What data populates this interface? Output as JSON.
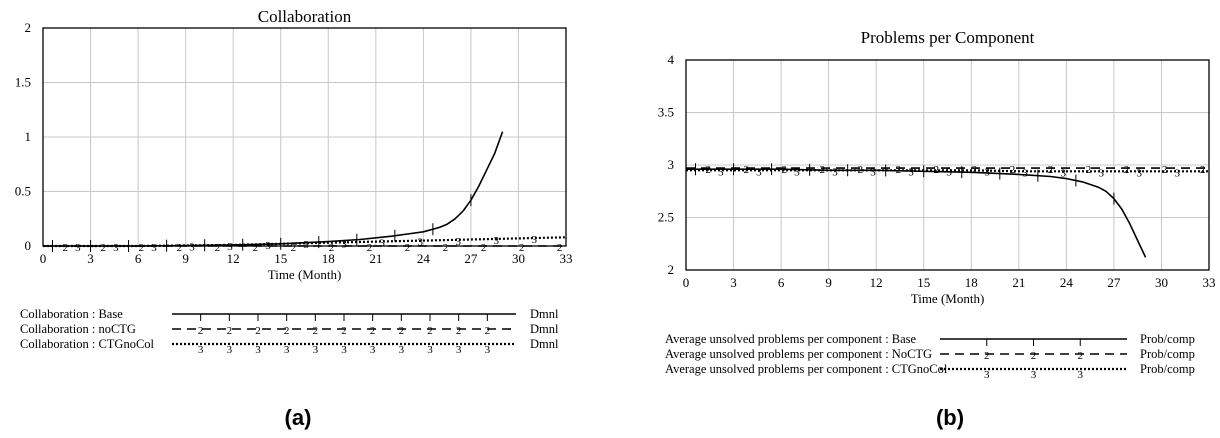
{
  "chart_data": [
    {
      "type": "line",
      "title": "Collaboration",
      "xlabel": "Time (Month)",
      "ylabel": "",
      "xlim": [
        0,
        33
      ],
      "ylim": [
        0,
        2
      ],
      "xticks": [
        "0",
        "3",
        "6",
        "9",
        "12",
        "15",
        "18",
        "21",
        "24",
        "27",
        "30",
        "33"
      ],
      "yticks": [
        "2",
        "1.5",
        "1",
        "0.5",
        "0"
      ],
      "grid": true,
      "series": [
        {
          "name": "Collaboration : Base",
          "unit": "Dmnl",
          "marker": "1",
          "style": "solid",
          "x": [
            0,
            3,
            6,
            9,
            12,
            15,
            18,
            20,
            22,
            23,
            24,
            25,
            25.5,
            26,
            26.5,
            27,
            27.5,
            28,
            28.5,
            29
          ],
          "y": [
            0,
            0,
            0,
            0.005,
            0.01,
            0.02,
            0.04,
            0.06,
            0.09,
            0.11,
            0.13,
            0.17,
            0.2,
            0.25,
            0.32,
            0.42,
            0.55,
            0.7,
            0.85,
            1.05
          ]
        },
        {
          "name": "Collaboration : noCTG",
          "unit": "Dmnl",
          "marker": "2",
          "style": "dashed",
          "x": [
            0,
            3,
            6,
            9,
            12,
            15,
            18,
            21,
            24,
            27,
            30,
            33
          ],
          "y": [
            0,
            0,
            0,
            0,
            0,
            0,
            0,
            0,
            0,
            0,
            0,
            0
          ]
        },
        {
          "name": "Collaboration : CTGnoCol",
          "unit": "Dmnl",
          "marker": "3",
          "style": "dotted",
          "x": [
            0,
            3,
            6,
            9,
            12,
            15,
            18,
            21,
            24,
            27,
            30,
            33
          ],
          "y": [
            0,
            0,
            0,
            0.005,
            0.01,
            0.02,
            0.03,
            0.04,
            0.05,
            0.06,
            0.07,
            0.08
          ]
        }
      ],
      "caption": "(a)"
    },
    {
      "type": "line",
      "title": "Problems per Component",
      "xlabel": "Time (Month)",
      "ylabel": "",
      "xlim": [
        0,
        33
      ],
      "ylim": [
        2,
        4
      ],
      "xticks": [
        "0",
        "3",
        "6",
        "9",
        "12",
        "15",
        "18",
        "21",
        "24",
        "27",
        "30",
        "33"
      ],
      "yticks": [
        "4",
        "3.5",
        "3",
        "2.5",
        "2"
      ],
      "grid": true,
      "series": [
        {
          "name": "Average unsolved problems per component : Base",
          "unit": "Prob/comp",
          "marker": "1",
          "style": "solid",
          "x": [
            0,
            3,
            6,
            9,
            12,
            15,
            18,
            21,
            23,
            24,
            25,
            26,
            26.5,
            27,
            27.5,
            28,
            28.5,
            29
          ],
          "y": [
            2.96,
            2.96,
            2.96,
            2.95,
            2.95,
            2.94,
            2.93,
            2.91,
            2.89,
            2.87,
            2.84,
            2.79,
            2.75,
            2.68,
            2.58,
            2.44,
            2.28,
            2.12
          ]
        },
        {
          "name": "Average unsolved problems per component : NoCTG",
          "unit": "Prob/comp",
          "marker": "2",
          "style": "dashed",
          "x": [
            0,
            3,
            6,
            9,
            12,
            15,
            18,
            21,
            24,
            27,
            30,
            33
          ],
          "y": [
            2.97,
            2.97,
            2.97,
            2.97,
            2.97,
            2.97,
            2.97,
            2.97,
            2.97,
            2.97,
            2.97,
            2.97
          ]
        },
        {
          "name": "Average unsolved problems per component : CTGnoCol",
          "unit": "Prob/comp",
          "marker": "3",
          "style": "dotted",
          "x": [
            0,
            3,
            6,
            9,
            12,
            15,
            18,
            21,
            24,
            27,
            30,
            33
          ],
          "y": [
            2.95,
            2.95,
            2.95,
            2.95,
            2.95,
            2.95,
            2.95,
            2.94,
            2.94,
            2.94,
            2.94,
            2.94
          ]
        }
      ],
      "caption": "(b)"
    }
  ]
}
